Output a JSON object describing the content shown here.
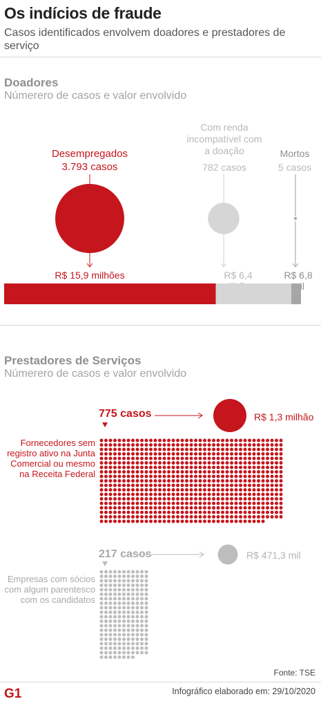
{
  "header": {
    "title": "Os indícios de fraude",
    "subtitle": "Casos identificados envolvem doadores e prestadores de serviço"
  },
  "doadores": {
    "title": "Doadores",
    "subtitle": "Númerero de casos e valor envolvido",
    "groups": [
      {
        "name": "Desempregados",
        "cases_label": "3.793 casos",
        "value_label": "R$ 15,9 milhões",
        "cases": 3793,
        "value_millions": 15.9
      },
      {
        "name": "Com renda incompatível com a doação",
        "cases_label": "782 casos",
        "value_label": "R$ 6,4 milhões",
        "cases": 782,
        "value_millions": 6.4
      },
      {
        "name": "Mortos",
        "cases_label": "5 casos",
        "value_label": "R$ 6,8 mil",
        "cases": 5,
        "value_millions": 0.0068
      }
    ]
  },
  "prestadores": {
    "title": "Prestadores de Serviços",
    "subtitle": "Númerero de casos e valor envolvido",
    "groups": [
      {
        "cases_label": "775 casos",
        "cases": 775,
        "value_label": "R$ 1,3 milhão",
        "value_millions": 1.3,
        "description": "Fornecedores sem registro ativo na Junta Comercial ou mesmo na Receita Federal"
      },
      {
        "cases_label": "217 casos",
        "cases": 217,
        "value_label": "R$ 471,3 mil",
        "value_millions": 0.4713,
        "description": "Empresas com sócios com algum parentesco com os candidatos"
      }
    ]
  },
  "source": "Fonte: TSE",
  "credit": "Infográfico elaborado em: 29/10/2020",
  "logo_text": "G1",
  "colors": {
    "red": "#c4161c",
    "grey": "#d6d6d6",
    "dark_grey": "#a6a6a6",
    "dots_grey": "#bdbdbd"
  },
  "chart_data": [
    {
      "type": "bar",
      "title": "Doadores",
      "subtitle": "Númerero de casos e valor envolvido",
      "categories": [
        "Desempregados",
        "Com renda incompatível com a doação",
        "Mortos"
      ],
      "series": [
        {
          "name": "casos",
          "values": [
            3793,
            782,
            5
          ]
        },
        {
          "name": "valor (R$ milhões)",
          "values": [
            15.9,
            6.4,
            0.0068
          ]
        }
      ]
    },
    {
      "type": "scatter",
      "title": "Prestadores de Serviços",
      "subtitle": "Númerero de casos e valor envolvido",
      "categories": [
        "Fornecedores sem registro ativo na Junta Comercial ou mesmo na Receita Federal",
        "Empresas com sócios com algum parentesco com os candidatos"
      ],
      "series": [
        {
          "name": "casos",
          "values": [
            775,
            217
          ]
        },
        {
          "name": "valor (R$ milhões)",
          "values": [
            1.3,
            0.4713
          ]
        }
      ]
    }
  ]
}
